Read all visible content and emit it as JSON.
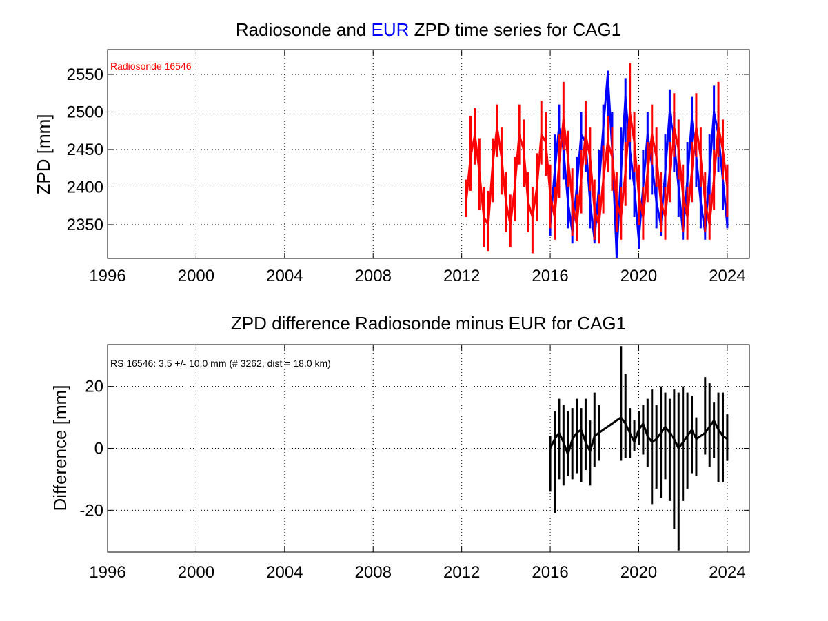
{
  "chart_data": [
    {
      "type": "line",
      "title_parts": [
        {
          "text": "Radiosonde and ",
          "color": "#000000"
        },
        {
          "text": "EUR",
          "color": "#0000ff"
        },
        {
          "text": " ZPD time series for CAG1",
          "color": "#000000"
        }
      ],
      "xlabel": "",
      "ylabel": "ZPD [mm]",
      "xlim": [
        1996,
        2025
      ],
      "ylim": [
        2305,
        2583
      ],
      "xticks": [
        1996,
        2000,
        2004,
        2008,
        2012,
        2016,
        2020,
        2024
      ],
      "yticks": [
        2350,
        2400,
        2450,
        2500,
        2550
      ],
      "grid": true,
      "annotation": {
        "text": "Radiosonde 16546",
        "color": "#ff0000"
      },
      "series": [
        {
          "color": "#0000ff",
          "x": [
            2016.0,
            2016.2,
            2016.4,
            2016.6,
            2016.8,
            2017.0,
            2017.2,
            2017.4,
            2017.6,
            2017.8,
            2018.0,
            2018.2,
            2018.4,
            2018.6,
            2018.8,
            2019.0,
            2019.2,
            2019.4,
            2019.6,
            2019.8,
            2020.0,
            2020.2,
            2020.4,
            2020.6,
            2020.8,
            2021.0,
            2021.2,
            2021.4,
            2021.6,
            2021.8,
            2022.0,
            2022.2,
            2022.4,
            2022.6,
            2022.8,
            2023.0,
            2023.2,
            2023.4,
            2023.6,
            2023.8,
            2024.0
          ],
          "y": [
            2350,
            2420,
            2480,
            2450,
            2380,
            2340,
            2400,
            2470,
            2460,
            2380,
            2330,
            2400,
            2480,
            2550,
            2450,
            2310,
            2420,
            2520,
            2450,
            2400,
            2330,
            2400,
            2470,
            2430,
            2380,
            2350,
            2420,
            2500,
            2460,
            2400,
            2340,
            2410,
            2490,
            2440,
            2380,
            2340,
            2420,
            2500,
            2470,
            2410,
            2350
          ],
          "min": [
            2335,
            2380,
            2440,
            2410,
            2345,
            2325,
            2360,
            2430,
            2420,
            2345,
            2325,
            2365,
            2445,
            2470,
            2400,
            2305,
            2370,
            2460,
            2410,
            2360,
            2318,
            2360,
            2430,
            2390,
            2345,
            2335,
            2380,
            2450,
            2420,
            2360,
            2330,
            2370,
            2440,
            2400,
            2345,
            2330,
            2375,
            2450,
            2420,
            2370,
            2345
          ],
          "max": [
            2400,
            2470,
            2510,
            2490,
            2430,
            2390,
            2440,
            2500,
            2500,
            2430,
            2380,
            2450,
            2510,
            2555,
            2500,
            2380,
            2480,
            2545,
            2500,
            2450,
            2400,
            2450,
            2500,
            2470,
            2430,
            2410,
            2470,
            2530,
            2500,
            2450,
            2400,
            2460,
            2520,
            2480,
            2430,
            2400,
            2470,
            2535,
            2510,
            2450,
            2430
          ]
        },
        {
          "color": "#ff0000",
          "x": [
            2012.2,
            2012.4,
            2012.6,
            2012.8,
            2013.0,
            2013.2,
            2013.4,
            2013.6,
            2013.8,
            2014.0,
            2014.2,
            2014.4,
            2014.6,
            2014.8,
            2015.0,
            2015.2,
            2015.4,
            2015.6,
            2015.8,
            2016.0,
            2016.2,
            2016.4,
            2016.6,
            2016.8,
            2017.0,
            2017.2,
            2017.4,
            2017.6,
            2017.8,
            2018.0,
            2018.2,
            2018.4,
            2018.6,
            2018.8,
            2019.0,
            2019.2,
            2019.4,
            2019.6,
            2019.8,
            2020.0,
            2020.2,
            2020.4,
            2020.6,
            2020.8,
            2021.0,
            2021.2,
            2021.4,
            2021.6,
            2021.8,
            2022.0,
            2022.2,
            2022.4,
            2022.6,
            2022.8,
            2023.0,
            2023.2,
            2023.4,
            2023.6,
            2023.8,
            2024.0
          ],
          "y": [
            2380,
            2440,
            2470,
            2420,
            2360,
            2350,
            2430,
            2480,
            2440,
            2380,
            2350,
            2400,
            2470,
            2450,
            2380,
            2360,
            2400,
            2470,
            2460,
            2390,
            2360,
            2430,
            2490,
            2440,
            2380,
            2350,
            2410,
            2470,
            2440,
            2370,
            2350,
            2410,
            2460,
            2440,
            2380,
            2360,
            2420,
            2500,
            2460,
            2390,
            2360,
            2420,
            2470,
            2440,
            2380,
            2360,
            2420,
            2480,
            2450,
            2390,
            2360,
            2420,
            2480,
            2440,
            2380,
            2350,
            2410,
            2480,
            2450,
            2400
          ],
          "min": [
            2360,
            2395,
            2430,
            2370,
            2320,
            2315,
            2380,
            2440,
            2390,
            2340,
            2320,
            2355,
            2430,
            2400,
            2340,
            2312,
            2355,
            2430,
            2415,
            2345,
            2330,
            2385,
            2450,
            2400,
            2335,
            2328,
            2365,
            2430,
            2395,
            2330,
            2325,
            2365,
            2420,
            2395,
            2340,
            2330,
            2375,
            2460,
            2420,
            2350,
            2330,
            2380,
            2430,
            2400,
            2340,
            2330,
            2380,
            2440,
            2410,
            2340,
            2330,
            2380,
            2440,
            2400,
            2340,
            2330,
            2370,
            2440,
            2410,
            2360
          ],
          "max": [
            2410,
            2495,
            2505,
            2465,
            2400,
            2395,
            2465,
            2510,
            2480,
            2420,
            2390,
            2440,
            2510,
            2490,
            2420,
            2400,
            2445,
            2515,
            2500,
            2430,
            2400,
            2470,
            2540,
            2475,
            2425,
            2390,
            2450,
            2515,
            2480,
            2410,
            2390,
            2455,
            2495,
            2480,
            2420,
            2400,
            2460,
            2565,
            2500,
            2430,
            2400,
            2460,
            2510,
            2480,
            2420,
            2400,
            2460,
            2525,
            2490,
            2430,
            2400,
            2460,
            2525,
            2480,
            2420,
            2390,
            2450,
            2540,
            2490,
            2430
          ]
        }
      ]
    },
    {
      "type": "line",
      "title_parts": [
        {
          "text": "ZPD difference Radiosonde minus EUR for CAG1",
          "color": "#000000"
        }
      ],
      "xlabel": "",
      "ylabel": "Difference [mm]",
      "xlim": [
        1996,
        2025
      ],
      "ylim": [
        -33.5,
        33.5
      ],
      "xticks": [
        1996,
        2000,
        2004,
        2008,
        2012,
        2016,
        2020,
        2024
      ],
      "yticks": [
        -20,
        0,
        20
      ],
      "grid": true,
      "annotation": {
        "text": "RS 16546: 3.5 +/- 10.0 mm (# 3262, dist =  18.0 km)",
        "color": "#000000"
      },
      "series": [
        {
          "color": "#000000",
          "x": [
            2016.0,
            2016.2,
            2016.4,
            2016.6,
            2016.8,
            2017.0,
            2017.2,
            2017.4,
            2017.6,
            2017.8,
            2018.0,
            2018.2,
            2019.2,
            2019.4,
            2019.6,
            2019.8,
            2020.0,
            2020.2,
            2020.4,
            2020.6,
            2020.8,
            2021.0,
            2021.2,
            2021.4,
            2021.6,
            2021.8,
            2022.0,
            2022.2,
            2022.4,
            2022.6,
            2023.0,
            2023.2,
            2023.4,
            2023.6,
            2023.8,
            2024.0
          ],
          "y": [
            0,
            3,
            5,
            2,
            -2,
            3,
            5,
            6,
            2,
            -1,
            4,
            5,
            10,
            8,
            5,
            2,
            6,
            8,
            4,
            2,
            3,
            5,
            7,
            5,
            3,
            0,
            2,
            4,
            6,
            3,
            5,
            7,
            9,
            6,
            4,
            3
          ],
          "min": [
            -14,
            -21,
            -10,
            -12,
            -9,
            -10,
            -8,
            -11,
            -7,
            -12,
            -6,
            -4,
            -4,
            -3,
            -3,
            -1,
            1,
            -2,
            -6,
            -18,
            -13,
            -16,
            -10,
            -17,
            -26,
            -33,
            -17,
            -13,
            -8,
            -9,
            -2,
            -6,
            -3,
            -11,
            -11,
            -4
          ],
          "max": [
            4,
            12,
            16,
            14,
            12,
            13,
            16,
            13,
            16,
            9,
            18,
            14,
            33,
            24,
            13,
            9,
            12,
            14,
            16,
            19,
            14,
            20,
            18,
            16,
            19,
            18,
            20,
            18,
            17,
            10,
            23,
            21,
            15,
            18,
            18,
            11
          ]
        }
      ]
    }
  ]
}
